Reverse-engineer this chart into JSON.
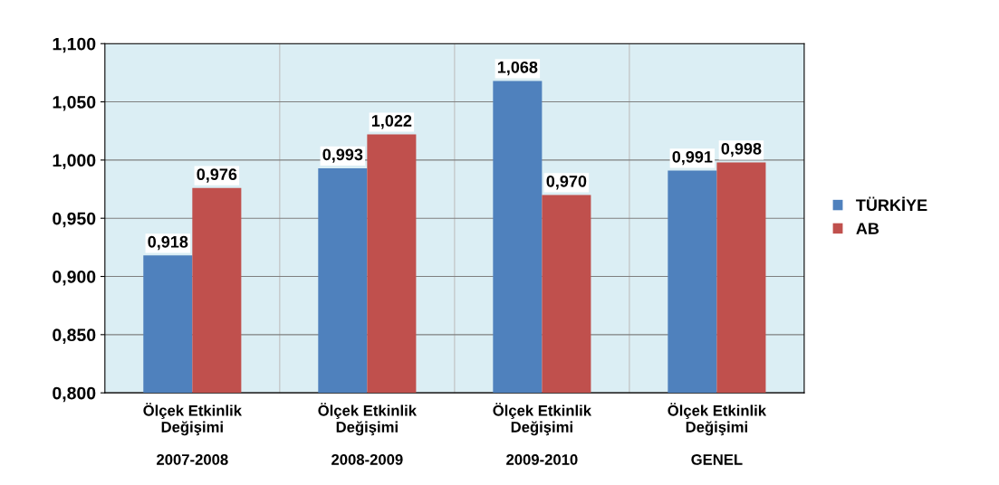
{
  "chart_data": {
    "type": "bar",
    "categories": [
      "Ölçek Etkinlik\nDeğişimi\n\n2007-2008",
      "Ölçek Etkinlik\nDeğişimi\n\n2008-2009",
      "Ölçek Etkinlik\nDeğişimi\n\n2009-2010",
      "Ölçek Etkinlik\nDeğişimi\n\nGENEL"
    ],
    "series": [
      {
        "name": "TÜRKİYE",
        "color": "#4f81bd",
        "values": [
          0.918,
          0.993,
          1.068,
          0.991
        ],
        "value_labels": [
          "0,918",
          "0,993",
          "1,068",
          "0,991"
        ]
      },
      {
        "name": "AB",
        "color": "#c0504d",
        "values": [
          0.976,
          1.022,
          0.97,
          0.998
        ],
        "value_labels": [
          "0,976",
          "1,022",
          "0,970",
          "0,998"
        ]
      }
    ],
    "ylim": [
      0.8,
      1.1
    ],
    "yticks": [
      {
        "value": 0.8,
        "label": "0,800"
      },
      {
        "value": 0.85,
        "label": "0,850"
      },
      {
        "value": 0.9,
        "label": "0,900"
      },
      {
        "value": 0.95,
        "label": "0,950"
      },
      {
        "value": 1.0,
        "label": "1,000"
      },
      {
        "value": 1.05,
        "label": "1,050"
      },
      {
        "value": 1.1,
        "label": "1,100"
      }
    ],
    "grid": true,
    "legend": "right"
  }
}
